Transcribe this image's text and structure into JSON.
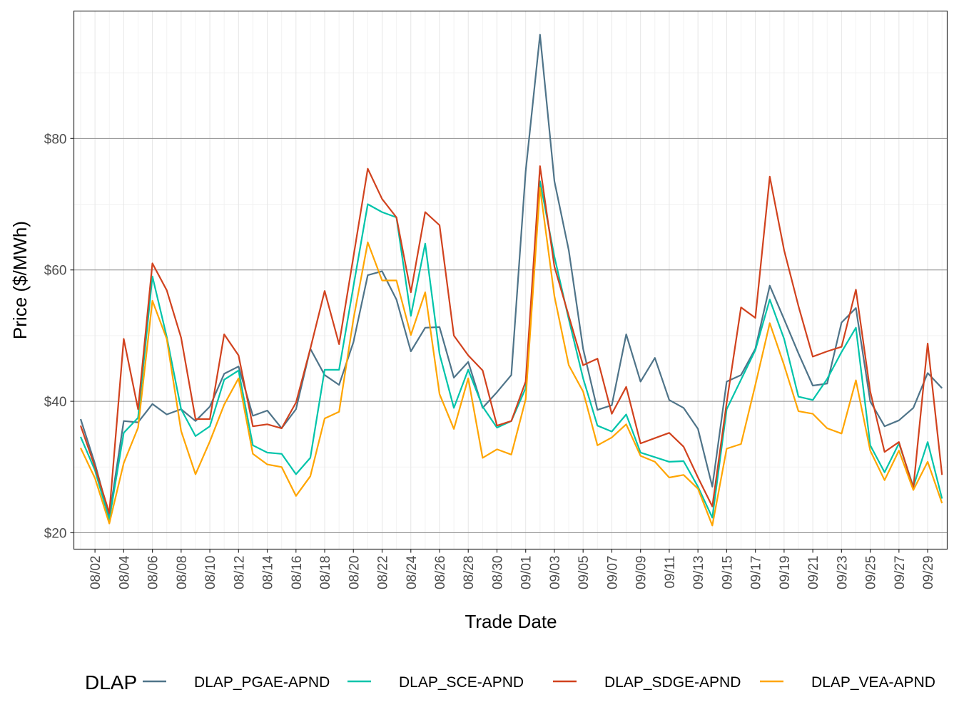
{
  "chart_data": {
    "type": "line",
    "title": "",
    "xlabel": "Trade Date",
    "ylabel": "Price ($/MWh)",
    "ylim": [
      17.5,
      99.4
    ],
    "yticks": [
      20,
      40,
      60,
      80
    ],
    "ytick_labels": [
      "$20",
      "$40",
      "$60",
      "$80"
    ],
    "grid": true,
    "legend": {
      "title": "DLAP",
      "placement": "bottom"
    },
    "x": [
      "08/01",
      "08/02",
      "08/03",
      "08/04",
      "08/05",
      "08/06",
      "08/07",
      "08/08",
      "08/09",
      "08/10",
      "08/11",
      "08/12",
      "08/13",
      "08/14",
      "08/15",
      "08/16",
      "08/17",
      "08/18",
      "08/19",
      "08/20",
      "08/21",
      "08/22",
      "08/23",
      "08/24",
      "08/25",
      "08/26",
      "08/27",
      "08/28",
      "08/29",
      "08/30",
      "08/31",
      "09/01",
      "09/02",
      "09/03",
      "09/04",
      "09/05",
      "09/06",
      "09/07",
      "09/08",
      "09/09",
      "09/10",
      "09/11",
      "09/12",
      "09/13",
      "09/14",
      "09/15",
      "09/16",
      "09/17",
      "09/18",
      "09/19",
      "09/20",
      "09/21",
      "09/22",
      "09/23",
      "09/24",
      "09/25",
      "09/26",
      "09/27",
      "09/28",
      "09/29",
      "09/30"
    ],
    "xtick_labels": [
      "08/02",
      "08/04",
      "08/06",
      "08/08",
      "08/10",
      "08/12",
      "08/14",
      "08/16",
      "08/18",
      "08/20",
      "08/22",
      "08/24",
      "08/26",
      "08/28",
      "08/30",
      "09/01",
      "09/03",
      "09/05",
      "09/07",
      "09/09",
      "09/11",
      "09/13",
      "09/15",
      "09/17",
      "09/19",
      "09/21",
      "09/23",
      "09/25",
      "09/27",
      "09/29"
    ],
    "series": [
      {
        "name": "DLAP_PGAE-APND",
        "color": "#4f7489",
        "values": [
          37.3,
          30.5,
          22.5,
          37.0,
          36.8,
          39.6,
          38.0,
          38.8,
          37.0,
          39.2,
          44.2,
          45.3,
          37.8,
          38.6,
          35.9,
          38.8,
          48.0,
          44.0,
          42.5,
          49.0,
          59.2,
          59.8,
          55.5,
          47.6,
          51.2,
          51.3,
          43.6,
          46.0,
          39.0,
          41.4,
          44.0,
          75.0,
          95.8,
          73.5,
          63.0,
          48.0,
          38.7,
          39.4,
          50.2,
          43.0,
          46.6,
          40.2,
          39.0,
          35.8,
          27.0,
          43.0,
          44.0,
          48.0,
          57.6,
          52.5,
          47.3,
          42.4,
          42.7,
          52.0,
          54.2,
          40.0,
          36.2,
          37.1,
          39.0,
          44.3,
          42.0
        ]
      },
      {
        "name": "DLAP_SCE-APND",
        "color": "#00c4aa",
        "values": [
          34.6,
          29.5,
          22.0,
          35.2,
          37.5,
          59.0,
          49.8,
          38.8,
          34.7,
          36.2,
          43.3,
          44.7,
          33.3,
          32.2,
          32.0,
          28.9,
          31.4,
          44.8,
          44.8,
          57.5,
          70.0,
          68.8,
          68.0,
          53.0,
          64.0,
          47.2,
          39.0,
          44.8,
          39.2,
          36.0,
          37.0,
          42.0,
          73.5,
          62.0,
          52.5,
          43.5,
          36.3,
          35.4,
          38.0,
          32.2,
          31.5,
          30.8,
          30.9,
          27.0,
          22.3,
          38.8,
          43.3,
          47.8,
          55.5,
          49.5,
          40.7,
          40.2,
          43.4,
          47.5,
          51.2,
          33.3,
          29.2,
          33.6,
          27.0,
          33.8,
          25.2
        ]
      },
      {
        "name": "DLAP_SDGE-APND",
        "color": "#d1421e",
        "values": [
          36.3,
          30.0,
          23.0,
          49.5,
          38.8,
          61.0,
          56.9,
          49.7,
          37.3,
          37.3,
          50.2,
          47.0,
          36.2,
          36.5,
          35.9,
          39.8,
          48.0,
          56.8,
          48.7,
          62.0,
          75.4,
          70.8,
          68.0,
          56.6,
          68.8,
          66.8,
          50.0,
          47.0,
          44.7,
          36.3,
          37.0,
          43.0,
          75.8,
          60.5,
          53.0,
          45.5,
          46.5,
          38.1,
          42.2,
          33.6,
          34.4,
          35.2,
          33.1,
          28.4,
          24.0,
          39.8,
          54.3,
          52.7,
          74.2,
          63.0,
          54.5,
          46.8,
          47.6,
          48.3,
          57.0,
          41.5,
          32.3,
          33.8,
          26.8,
          48.8,
          28.8
        ]
      },
      {
        "name": "DLAP_VEA-APND",
        "color": "#ffa500",
        "values": [
          32.9,
          28.3,
          21.4,
          30.6,
          36.0,
          55.3,
          49.5,
          35.5,
          28.9,
          33.9,
          39.5,
          43.5,
          32.0,
          30.4,
          30.0,
          25.6,
          28.6,
          37.4,
          38.4,
          52.5,
          64.2,
          58.4,
          58.4,
          50.1,
          56.6,
          41.1,
          35.8,
          43.5,
          31.4,
          32.7,
          31.9,
          40.3,
          72.5,
          56.0,
          45.5,
          41.5,
          33.3,
          34.5,
          36.5,
          31.7,
          30.8,
          28.4,
          28.8,
          26.7,
          21.1,
          32.8,
          33.5,
          42.5,
          51.9,
          45.5,
          38.5,
          38.1,
          35.9,
          35.1,
          43.2,
          32.5,
          28.0,
          32.5,
          26.5,
          30.8,
          24.5
        ]
      }
    ]
  }
}
